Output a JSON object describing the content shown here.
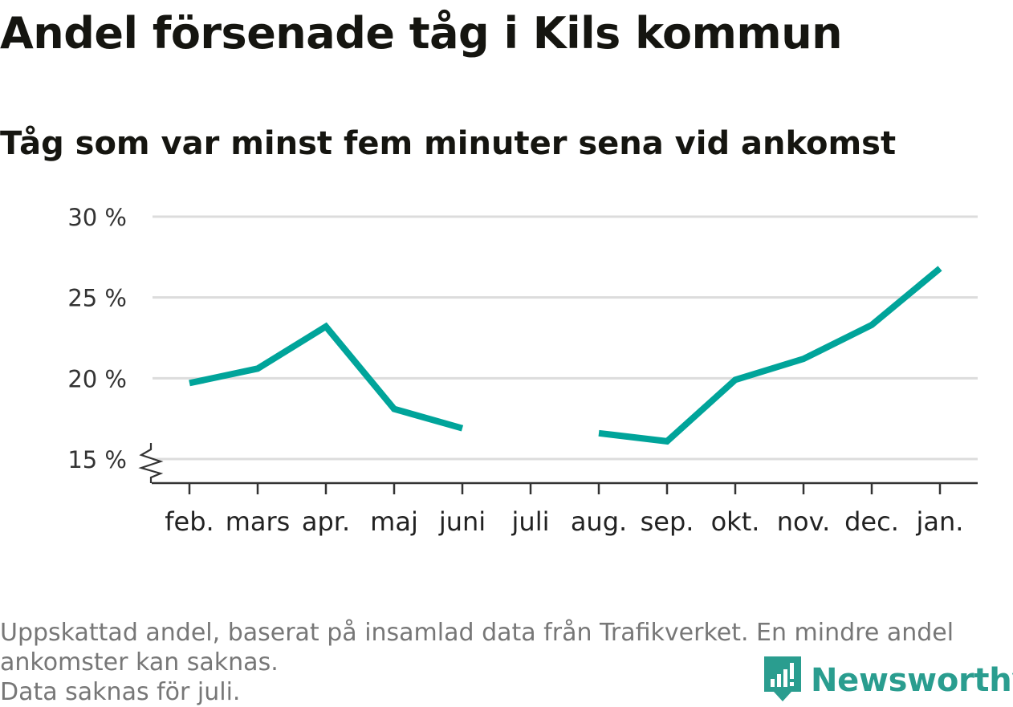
{
  "title": "Andel försenade tåg i Kils kommun",
  "subtitle": "Tåg som var minst fem minuter sena vid ankomst",
  "footnote": {
    "line1": "Uppskattad andel, baserat på insamlad data från Trafikverket. En mindre andel",
    "line2": "ankomster kan saknas.",
    "line3": "Data saknas för juli."
  },
  "brand": {
    "name": "Newsworthy",
    "icon": "newsworthy-chart-icon"
  },
  "colors": {
    "line": "#00a49a",
    "grid": "#dcdcdc",
    "axis": "#333333",
    "brand": "#2a9d8f"
  },
  "chart_data": {
    "type": "line",
    "title": "Andel försenade tåg i Kils kommun",
    "subtitle": "Tåg som var minst fem minuter sena vid ankomst",
    "categories": [
      "feb.",
      "mars",
      "apr.",
      "maj",
      "juni",
      "juli",
      "aug.",
      "sep.",
      "okt.",
      "nov.",
      "dec.",
      "jan."
    ],
    "series": [
      {
        "values": [
          19.7,
          20.6,
          23.2,
          18.1,
          16.9,
          null,
          16.6,
          16.1,
          19.9,
          21.2,
          23.3,
          26.8
        ]
      }
    ],
    "unit": "%",
    "ylim": [
      15,
      30
    ],
    "yticks": [
      15,
      20,
      25,
      30
    ],
    "ytick_labels": [
      "15 %",
      "20 %",
      "25 %",
      "30 %"
    ],
    "axis_break": true,
    "grid": true,
    "legend": false
  }
}
